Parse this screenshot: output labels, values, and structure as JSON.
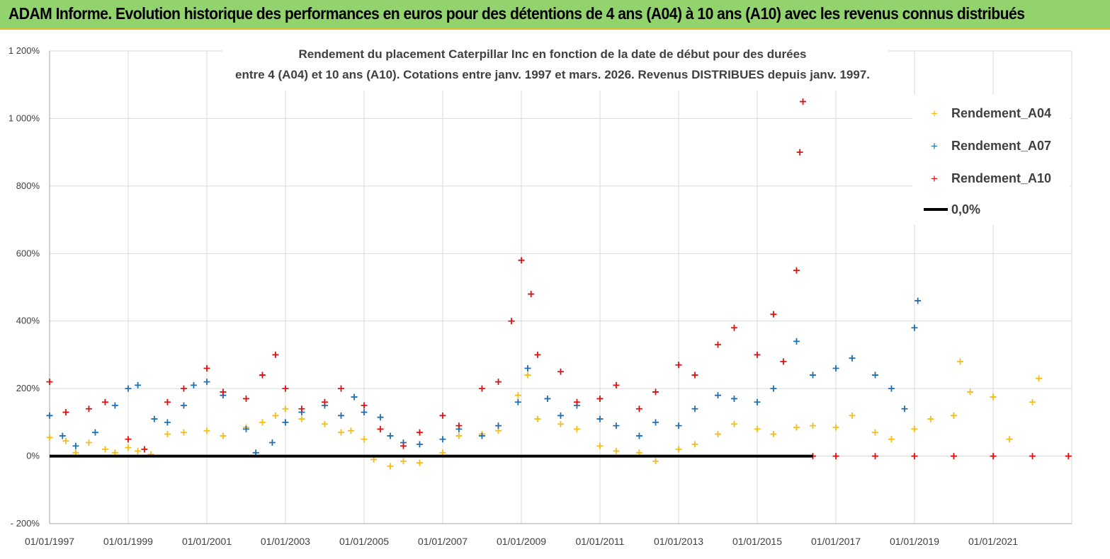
{
  "banner": {
    "title": "ADAM Informe. Evolution historique des performances en euros pour des détentions de 4 ans (A04) à 10 ans (A10) avec les revenus connus distribués"
  },
  "chart_data": {
    "type": "scatter",
    "title_lines": [
      "Rendement du placement Caterpillar Inc en fonction de la date de début pour des durées",
      "entre 4 (A04) et 10 ans (A10).  Cotations entre janv. 1997 et mars. 2026. Revenus DISTRIBUES depuis janv. 1997."
    ],
    "xlabel": "",
    "ylabel": "",
    "xlim": [
      "1997-01-01",
      "2023-01-01"
    ],
    "ylim": [
      -200,
      1200
    ],
    "y_ticks": [
      -200,
      0,
      200,
      400,
      600,
      800,
      1000,
      1200
    ],
    "y_tick_labels": [
      "- 200%",
      "0%",
      "200%",
      "400%",
      "600%",
      "800%",
      "1 000%",
      "1 200%"
    ],
    "x_ticks": [
      "1997-01-01",
      "1999-01-01",
      "2001-01-01",
      "2003-01-01",
      "2005-01-01",
      "2007-01-01",
      "2009-01-01",
      "2011-01-01",
      "2013-01-01",
      "2015-01-01",
      "2017-01-01",
      "2019-01-01",
      "2021-01-01"
    ],
    "x_tick_labels": [
      "01/01/1997",
      "01/01/1999",
      "01/01/2001",
      "01/01/2003",
      "01/01/2005",
      "01/01/2007",
      "01/01/2009",
      "01/01/2011",
      "01/01/2013",
      "01/01/2015",
      "01/01/2017",
      "01/01/2019",
      "01/01/2021"
    ],
    "grid": true,
    "legend_position": "top-right",
    "series": [
      {
        "name": "Rendement_A04",
        "color": "#f5bd16",
        "marker": "plus",
        "x": [
          "1997-01-01",
          "1997-06-01",
          "1997-09-01",
          "1998-01-01",
          "1998-06-01",
          "1998-09-01",
          "1999-01-01",
          "1999-04-01",
          "1999-08-01",
          "2000-01-01",
          "2000-06-01",
          "2001-01-01",
          "2001-06-01",
          "2002-01-01",
          "2002-06-01",
          "2002-10-01",
          "2003-01-01",
          "2003-06-01",
          "2004-01-01",
          "2004-06-01",
          "2004-09-01",
          "2005-01-01",
          "2005-04-01",
          "2005-09-01",
          "2006-01-01",
          "2006-06-01",
          "2007-01-01",
          "2007-06-01",
          "2008-01-01",
          "2008-06-01",
          "2008-12-01",
          "2009-03-01",
          "2009-06-01",
          "2010-01-01",
          "2010-06-01",
          "2011-01-01",
          "2011-06-01",
          "2012-01-01",
          "2012-06-01",
          "2013-01-01",
          "2013-06-01",
          "2014-01-01",
          "2014-06-01",
          "2015-01-01",
          "2015-06-01",
          "2016-01-01",
          "2016-06-01",
          "2017-01-01",
          "2017-06-01",
          "2018-01-01",
          "2018-06-01",
          "2019-01-01",
          "2019-06-01",
          "2020-01-01",
          "2020-03-01",
          "2020-06-01",
          "2021-01-01",
          "2021-06-01",
          "2022-01-01",
          "2022-03-01"
        ],
        "y": [
          55,
          45,
          10,
          40,
          20,
          10,
          25,
          15,
          5,
          65,
          70,
          75,
          60,
          85,
          100,
          120,
          140,
          110,
          95,
          70,
          75,
          50,
          -10,
          -30,
          -15,
          -20,
          10,
          60,
          65,
          75,
          180,
          240,
          110,
          95,
          80,
          30,
          15,
          10,
          -15,
          20,
          35,
          65,
          95,
          80,
          65,
          85,
          90,
          85,
          120,
          70,
          50,
          80,
          110,
          120,
          280,
          190,
          175,
          50,
          160,
          230
        ]
      },
      {
        "name": "Rendement_A07",
        "color": "#1e6fb4",
        "marker": "plus",
        "x": [
          "1997-01-01",
          "1997-05-01",
          "1997-09-01",
          "1998-03-01",
          "1998-09-01",
          "1999-01-01",
          "1999-04-01",
          "1999-09-01",
          "2000-01-01",
          "2000-06-01",
          "2000-09-01",
          "2001-01-01",
          "2001-06-01",
          "2002-01-01",
          "2002-04-01",
          "2002-09-01",
          "2003-01-01",
          "2003-06-01",
          "2004-01-01",
          "2004-06-01",
          "2004-10-01",
          "2005-01-01",
          "2005-06-01",
          "2005-09-01",
          "2006-01-01",
          "2006-06-01",
          "2007-01-01",
          "2007-06-01",
          "2008-01-01",
          "2008-06-01",
          "2008-12-01",
          "2009-03-01",
          "2009-09-01",
          "2010-01-01",
          "2010-06-01",
          "2011-01-01",
          "2011-06-01",
          "2012-01-01",
          "2012-06-01",
          "2013-01-01",
          "2013-06-01",
          "2014-01-01",
          "2014-06-01",
          "2015-01-01",
          "2015-06-01",
          "2016-01-01",
          "2016-06-01",
          "2017-01-01",
          "2017-06-01",
          "2018-01-01",
          "2018-06-01",
          "2018-10-01",
          "2019-01-01",
          "2019-02-01"
        ],
        "y": [
          120,
          60,
          30,
          70,
          150,
          200,
          210,
          110,
          100,
          150,
          210,
          220,
          180,
          80,
          10,
          40,
          100,
          130,
          150,
          120,
          175,
          130,
          115,
          60,
          40,
          35,
          50,
          80,
          60,
          90,
          160,
          260,
          170,
          120,
          150,
          110,
          90,
          60,
          100,
          90,
          140,
          180,
          170,
          160,
          200,
          340,
          240,
          260,
          290,
          240,
          200,
          140,
          380,
          460
        ]
      },
      {
        "name": "Rendement_A10",
        "color": "#e01010",
        "marker": "plus",
        "x": [
          "1997-01-01",
          "1997-06-01",
          "1998-01-01",
          "1998-06-01",
          "1999-01-01",
          "1999-06-01",
          "2000-01-01",
          "2000-06-01",
          "2001-01-01",
          "2001-06-01",
          "2002-01-01",
          "2002-06-01",
          "2002-10-01",
          "2003-01-01",
          "2003-06-01",
          "2004-01-01",
          "2004-06-01",
          "2005-01-01",
          "2005-06-01",
          "2006-01-01",
          "2006-06-01",
          "2007-01-01",
          "2007-06-01",
          "2008-01-01",
          "2008-06-01",
          "2008-10-01",
          "2009-01-01",
          "2009-04-01",
          "2009-06-01",
          "2010-01-01",
          "2010-06-01",
          "2011-01-01",
          "2011-06-01",
          "2012-01-01",
          "2012-06-01",
          "2013-01-01",
          "2013-06-01",
          "2014-01-01",
          "2014-06-01",
          "2015-01-01",
          "2015-06-01",
          "2015-09-01",
          "2016-01-01",
          "2016-02-01",
          "2016-03-01",
          "2016-06-01",
          "2017-01-01",
          "2018-01-01",
          "2019-01-01",
          "2020-01-01",
          "2021-01-01",
          "2022-01-01",
          "2022-12-01"
        ],
        "y": [
          220,
          130,
          140,
          160,
          50,
          20,
          160,
          200,
          260,
          190,
          170,
          240,
          300,
          200,
          140,
          160,
          200,
          150,
          80,
          30,
          70,
          120,
          90,
          200,
          220,
          400,
          580,
          480,
          300,
          250,
          160,
          170,
          210,
          140,
          190,
          270,
          240,
          330,
          380,
          300,
          420,
          280,
          550,
          900,
          1050,
          0,
          0,
          0,
          0,
          0,
          0,
          0,
          0
        ]
      },
      {
        "name": "0,0%",
        "color": "#000000",
        "marker": "line",
        "x": [
          "1997-01-01",
          "2016-06-01"
        ],
        "y": [
          0,
          0
        ]
      }
    ]
  }
}
